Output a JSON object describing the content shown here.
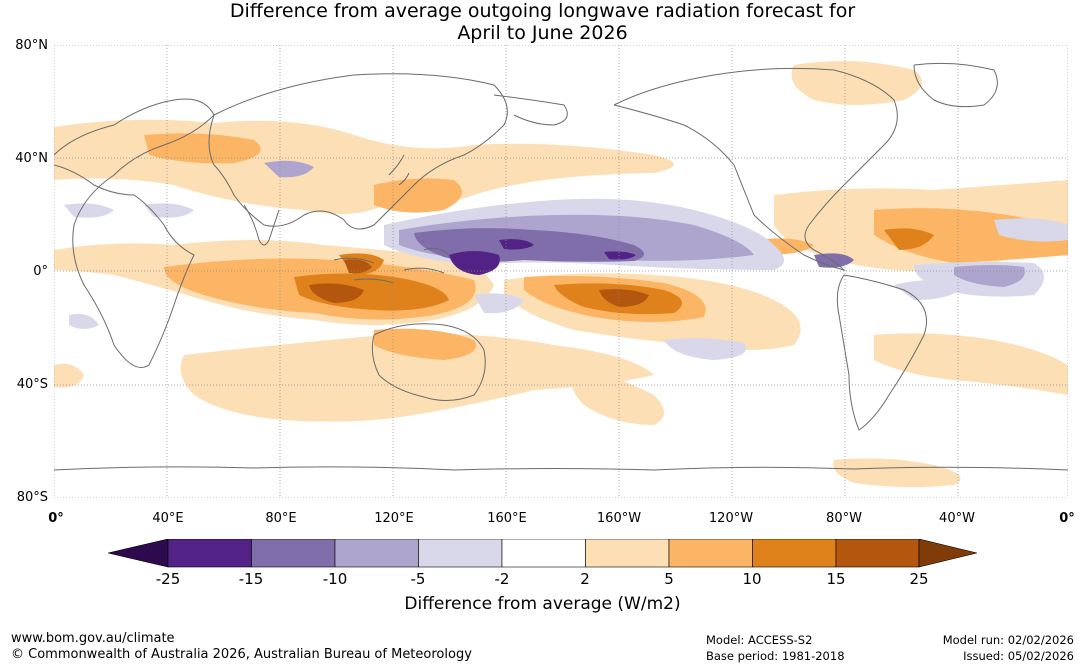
{
  "title": {
    "line1": "Difference from average outgoing longwave radiation forecast for",
    "line2": "April to June 2026"
  },
  "axes": {
    "lat_labels": [
      "80°N",
      "40°N",
      "0°",
      "40°S",
      "80°S"
    ],
    "lon_labels": [
      "0°",
      "40°E",
      "80°E",
      "120°E",
      "160°E",
      "160°W",
      "120°W",
      "80°W",
      "40°W",
      "0°"
    ]
  },
  "colorbar": {
    "ticks": [
      "-25",
      "-15",
      "-10",
      "-5",
      "-2",
      "2",
      "5",
      "10",
      "15",
      "25"
    ],
    "colors": [
      "#2d0a4e",
      "#522287",
      "#7f6eaa",
      "#aea5ce",
      "#d9d8ea",
      "#ffffff",
      "#fddfb5",
      "#fbb564",
      "#e0821c",
      "#b3570f",
      "#7f3b08"
    ],
    "label": "Difference from average (W/m2)"
  },
  "footer": {
    "website": "www.bom.gov.au/climate",
    "copyright": "© Commonwealth of Australia 2026, Australian Bureau of Meteorology",
    "model": "Model: ACCESS-S2",
    "base_period": "Base period: 1981-2018",
    "model_run": "Model run: 02/02/2026",
    "issued": "Issued: 05/02/2026"
  }
}
